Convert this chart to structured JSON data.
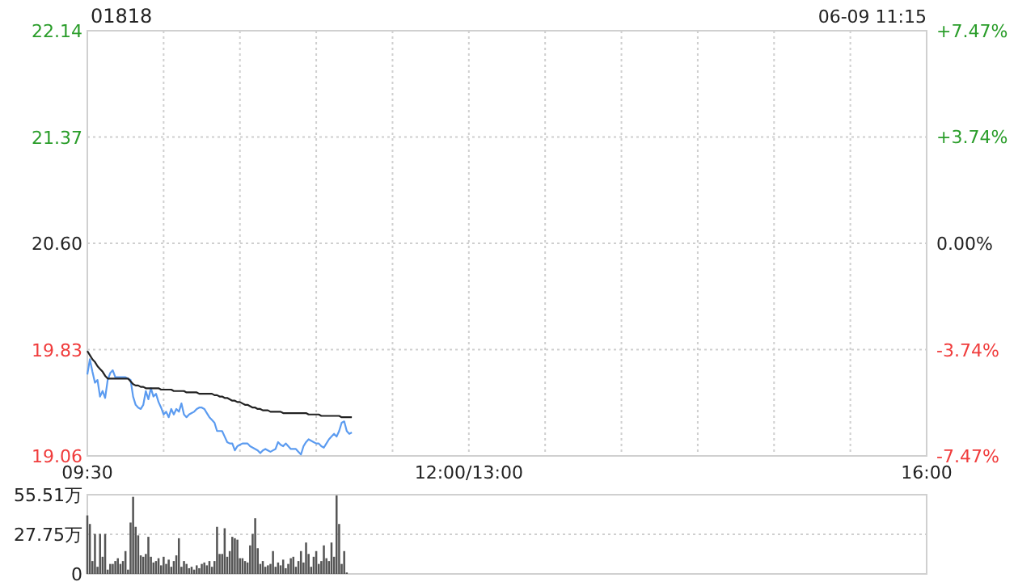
{
  "chart_data": [
    {
      "type": "line",
      "title": "01818",
      "annotations": [
        "06-09 11:15"
      ],
      "categories": [
        "09:30",
        null,
        null,
        null,
        null,
        null,
        null,
        null,
        null,
        null,
        null,
        null,
        null,
        null,
        null,
        null,
        null,
        null,
        null,
        null,
        null,
        null,
        null,
        null,
        null,
        null,
        null,
        null,
        null,
        null,
        null,
        null,
        null,
        null,
        null,
        null,
        null,
        null,
        null,
        null,
        null,
        null,
        null,
        null,
        null,
        null,
        null,
        null,
        null,
        null,
        null,
        null,
        null,
        null,
        null,
        null,
        null,
        null,
        null,
        null,
        null,
        null,
        null,
        null,
        null,
        null,
        null,
        null,
        null,
        null,
        null,
        null,
        null,
        null,
        null,
        null,
        null,
        null,
        null,
        null,
        null,
        null,
        null,
        null,
        null,
        null,
        null,
        null,
        null,
        null,
        null,
        null,
        null,
        null,
        null,
        null,
        null,
        null,
        null,
        null,
        null,
        null,
        null,
        null,
        null,
        null,
        null,
        null,
        null,
        null,
        null,
        null,
        null,
        null,
        null,
        null,
        null,
        null,
        null,
        null,
        null,
        null,
        null,
        null,
        null,
        null,
        null,
        null,
        null,
        null,
        null,
        null,
        null,
        null,
        null,
        null,
        null,
        null,
        null,
        null,
        null,
        null,
        null,
        null,
        null,
        null,
        null,
        null,
        null,
        null,
        "12:00/13:00",
        null,
        null,
        null,
        null,
        null,
        null,
        null,
        null,
        null,
        null,
        null,
        null,
        null,
        null,
        null,
        null,
        null,
        null,
        null,
        null,
        null,
        null,
        null,
        null,
        null,
        null,
        null,
        null,
        null,
        null,
        null,
        null,
        null,
        null,
        null,
        null,
        null,
        null,
        null,
        null,
        null,
        null,
        null,
        null,
        null,
        null,
        null,
        null,
        null,
        null,
        null,
        null,
        null,
        null,
        null,
        null,
        null,
        null,
        null,
        null,
        null,
        null,
        null,
        null,
        null,
        null,
        null,
        null,
        null,
        null,
        null,
        null,
        null,
        null,
        null,
        null,
        null,
        null,
        null,
        null,
        null,
        null,
        null,
        null,
        null,
        null,
        null,
        null,
        null,
        null,
        null,
        null,
        null,
        null,
        null,
        null,
        null,
        null,
        null,
        null,
        null,
        null,
        null,
        null,
        null,
        null,
        null,
        null,
        null,
        null,
        null,
        null,
        null,
        null,
        null,
        null,
        null,
        null,
        null,
        null,
        null,
        null,
        null,
        null,
        null,
        null,
        null,
        null,
        null,
        null,
        null,
        null,
        null,
        null,
        null,
        null,
        null,
        null,
        null,
        null,
        null,
        null,
        null,
        null,
        null,
        null,
        null,
        null,
        null,
        null,
        null,
        null,
        null,
        null,
        null,
        null,
        null,
        null,
        null,
        null,
        null,
        null,
        null,
        null,
        null,
        null,
        null,
        null,
        null,
        null,
        null,
        null,
        null,
        null,
        null,
        null,
        null,
        null,
        null,
        "16:00"
      ],
      "ylim": [
        19.06,
        22.14
      ],
      "yticks": [
        {
          "value": 19.06,
          "label": "19.06"
        },
        {
          "value": 19.83,
          "label": "19.83"
        },
        {
          "value": 20.6,
          "label": "20.60"
        },
        {
          "value": 21.37,
          "label": "21.37"
        },
        {
          "value": 22.14,
          "label": "22.14"
        }
      ],
      "y2lim": [
        -7.47,
        7.47
      ],
      "y2ticks": [
        {
          "value": -7.47,
          "label": "-7.47%"
        },
        {
          "value": -3.74,
          "label": "-3.74%"
        },
        {
          "value": 0,
          "label": "0.00%"
        },
        {
          "value": 3.74,
          "label": "+3.74%"
        },
        {
          "value": 7.47,
          "label": "+7.47%"
        }
      ],
      "grid": true,
      "series": [
        {
          "color": "#5b9bf0",
          "values": [
            19.65,
            19.76,
            19.67,
            19.59,
            19.61,
            19.49,
            19.53,
            19.48,
            19.61,
            19.66,
            19.68,
            19.63,
            19.63,
            19.63,
            19.63,
            19.63,
            19.62,
            19.61,
            19.49,
            19.43,
            19.41,
            19.4,
            19.43,
            19.53,
            19.47,
            19.55,
            19.49,
            19.51,
            19.45,
            19.41,
            19.36,
            19.38,
            19.34,
            19.4,
            19.36,
            19.4,
            19.38,
            19.44,
            19.36,
            19.34,
            19.36,
            19.37,
            19.38,
            19.4,
            19.41,
            19.41,
            19.4,
            19.37,
            19.34,
            19.32,
            19.3,
            19.24,
            19.24,
            19.24,
            19.2,
            19.16,
            19.15,
            19.15,
            19.1,
            19.13,
            19.14,
            19.15,
            19.15,
            19.15,
            19.13,
            19.12,
            19.11,
            19.1,
            19.08,
            19.1,
            19.11,
            19.1,
            19.09,
            19.1,
            19.11,
            19.16,
            19.14,
            19.13,
            19.15,
            19.13,
            19.11,
            19.11,
            19.11,
            19.09,
            19.07,
            19.13,
            19.16,
            19.18,
            19.17,
            19.16,
            19.15,
            19.15,
            19.13,
            19.12,
            19.15,
            19.18,
            19.2,
            19.22,
            19.2,
            19.24,
            19.3,
            19.31,
            19.24,
            19.22,
            19.23,
            null,
            null,
            null,
            null,
            null,
            null,
            null,
            null,
            null,
            null,
            null,
            null,
            null,
            null,
            null,
            null,
            null,
            null,
            null,
            null,
            null,
            null,
            null,
            null,
            null,
            null,
            null,
            null,
            null,
            null,
            null,
            null,
            null,
            null,
            null,
            null,
            null,
            null,
            null,
            null,
            null,
            null,
            null,
            null,
            null,
            null,
            null,
            null,
            null,
            null,
            null,
            null,
            null,
            null,
            null,
            null,
            null,
            null,
            null,
            null,
            null,
            null,
            null,
            null,
            null,
            null,
            null,
            null,
            null,
            null,
            null,
            null,
            null,
            null,
            null,
            null,
            null,
            null,
            null,
            null,
            null,
            null,
            null,
            null,
            null,
            null,
            null,
            null,
            null,
            null,
            null,
            null,
            null,
            null,
            null,
            null,
            null,
            null,
            null,
            null,
            null,
            null,
            null,
            null,
            null,
            null,
            null,
            null,
            null,
            null,
            null,
            null,
            null,
            null,
            null,
            null,
            null,
            null,
            null,
            null,
            null,
            null,
            null,
            null,
            null,
            null,
            null,
            null,
            null,
            null,
            null,
            null,
            null,
            null,
            null,
            null,
            null,
            null,
            null,
            null,
            null,
            null,
            null,
            null,
            null,
            null,
            null,
            null,
            null,
            null,
            null,
            null,
            null,
            null,
            null,
            null,
            null,
            null,
            null,
            null,
            null,
            null,
            null,
            null,
            null,
            null,
            null,
            null,
            null,
            null,
            null,
            null,
            null,
            null,
            null,
            null,
            null,
            null,
            null,
            null,
            null,
            null,
            null,
            null,
            null,
            null,
            null,
            null,
            null,
            null,
            null,
            null,
            null,
            null,
            null,
            null,
            null,
            null,
            null,
            null,
            null,
            null,
            null,
            null,
            null,
            null,
            null,
            null,
            null,
            null,
            null,
            null,
            null,
            null,
            null,
            null,
            null,
            null,
            null,
            null,
            null,
            null,
            null,
            null,
            null,
            null
          ]
        },
        {
          "color": "#222222",
          "values": [
            19.82,
            19.79,
            19.76,
            19.74,
            19.71,
            19.69,
            19.67,
            19.64,
            19.62,
            19.62,
            19.62,
            19.62,
            19.62,
            19.62,
            19.62,
            19.62,
            19.62,
            19.6,
            19.58,
            19.57,
            19.57,
            19.56,
            19.56,
            19.55,
            19.55,
            19.55,
            19.55,
            19.55,
            19.55,
            19.54,
            19.54,
            19.54,
            19.54,
            19.54,
            19.53,
            19.53,
            19.53,
            19.53,
            19.53,
            19.52,
            19.52,
            19.52,
            19.52,
            19.52,
            19.51,
            19.51,
            19.51,
            19.51,
            19.51,
            19.51,
            19.5,
            19.5,
            19.49,
            19.49,
            19.48,
            19.48,
            19.47,
            19.46,
            19.46,
            19.45,
            19.45,
            19.44,
            19.43,
            19.43,
            19.42,
            19.41,
            19.41,
            19.4,
            19.4,
            19.39,
            19.39,
            19.39,
            19.38,
            19.38,
            19.38,
            19.38,
            19.38,
            19.37,
            19.37,
            19.37,
            19.37,
            19.37,
            19.37,
            19.37,
            19.37,
            19.37,
            19.37,
            19.36,
            19.36,
            19.36,
            19.36,
            19.36,
            19.35,
            19.35,
            19.35,
            19.35,
            19.35,
            19.35,
            19.35,
            19.35,
            19.34,
            19.34,
            19.34,
            19.34,
            19.34,
            null,
            null,
            null,
            null,
            null,
            null,
            null,
            null,
            null,
            null,
            null,
            null,
            null,
            null,
            null,
            null,
            null,
            null,
            null,
            null,
            null,
            null,
            null,
            null,
            null,
            null,
            null,
            null,
            null,
            null,
            null,
            null,
            null,
            null,
            null,
            null,
            null,
            null,
            null,
            null,
            null,
            null,
            null,
            null,
            null,
            null,
            null,
            null,
            null,
            null,
            null,
            null,
            null,
            null,
            null,
            null,
            null,
            null,
            null,
            null,
            null,
            null,
            null,
            null,
            null,
            null,
            null,
            null,
            null,
            null,
            null,
            null,
            null,
            null,
            null,
            null,
            null,
            null,
            null,
            null,
            null,
            null,
            null,
            null,
            null,
            null,
            null,
            null,
            null,
            null,
            null,
            null,
            null,
            null,
            null,
            null,
            null,
            null,
            null,
            null,
            null,
            null,
            null,
            null,
            null,
            null,
            null,
            null,
            null,
            null,
            null,
            null,
            null,
            null,
            null,
            null,
            null,
            null,
            null,
            null,
            null,
            null,
            null,
            null,
            null,
            null,
            null,
            null,
            null,
            null,
            null,
            null,
            null,
            null,
            null,
            null,
            null,
            null,
            null,
            null,
            null,
            null,
            null,
            null,
            null,
            null,
            null,
            null,
            null,
            null,
            null,
            null,
            null,
            null,
            null,
            null,
            null,
            null,
            null,
            null,
            null,
            null,
            null,
            null,
            null,
            null,
            null,
            null,
            null,
            null,
            null,
            null,
            null,
            null,
            null,
            null,
            null,
            null,
            null,
            null,
            null,
            null,
            null,
            null,
            null,
            null,
            null,
            null,
            null,
            null,
            null,
            null,
            null,
            null,
            null,
            null,
            null,
            null,
            null,
            null,
            null,
            null,
            null,
            null,
            null,
            null,
            null,
            null,
            null,
            null,
            null,
            null,
            null,
            null,
            null,
            null,
            null,
            null,
            null,
            null,
            null,
            null,
            null,
            null,
            null,
            null
          ]
        }
      ]
    },
    {
      "type": "bar",
      "color": "#555555",
      "tick_labels": "y",
      "grid": "y",
      "categories": [
        null,
        null,
        null,
        null,
        null,
        null,
        null,
        null,
        null,
        null,
        null,
        null,
        null,
        null,
        null,
        null,
        null,
        null,
        null,
        null,
        null,
        null,
        null,
        null,
        null,
        null,
        null,
        null,
        null,
        null,
        null,
        null,
        null,
        null,
        null,
        null,
        null,
        null,
        null,
        null,
        null,
        null,
        null,
        null,
        null,
        null,
        null,
        null,
        null,
        null,
        null,
        null,
        null,
        null,
        null,
        null,
        null,
        null,
        null,
        null,
        null,
        null,
        null,
        null,
        null,
        null,
        null,
        null,
        null,
        null,
        null,
        null,
        null,
        null,
        null,
        null,
        null,
        null,
        null,
        null,
        null,
        null,
        null,
        null,
        null,
        null,
        null,
        null,
        null,
        null,
        null,
        null,
        null,
        null,
        null,
        null,
        null,
        null,
        null,
        null,
        null,
        null,
        null,
        null,
        null,
        null,
        null,
        null,
        null,
        null,
        null,
        null,
        null,
        null,
        null,
        null,
        null,
        null,
        null,
        null,
        null,
        null,
        null,
        null,
        null,
        null,
        null,
        null,
        null,
        null,
        null,
        null,
        null,
        null,
        null,
        null,
        null,
        null,
        null,
        null,
        null,
        null,
        null,
        null,
        null,
        null,
        null,
        null,
        null,
        null,
        null,
        null,
        null,
        null,
        null,
        null,
        null,
        null,
        null,
        null,
        null,
        null,
        null,
        null,
        null,
        null,
        null,
        null,
        null,
        null,
        null,
        null,
        null,
        null,
        null,
        null,
        null,
        null,
        null,
        null,
        null,
        null,
        null,
        null,
        null,
        null,
        null,
        null,
        null,
        null,
        null,
        null,
        null,
        null,
        null,
        null,
        null,
        null,
        null,
        null,
        null,
        null,
        null,
        null,
        null,
        null,
        null,
        null,
        null,
        null,
        null,
        null,
        null,
        null,
        null,
        null,
        null,
        null,
        null,
        null,
        null,
        null,
        null,
        null,
        null,
        null,
        null,
        null,
        null,
        null,
        null,
        null,
        null,
        null,
        null,
        null,
        null,
        null,
        null,
        null,
        null,
        null,
        null,
        null,
        null,
        null,
        null,
        null,
        null,
        null,
        null,
        null,
        null,
        null,
        null,
        null,
        null,
        null,
        null,
        null,
        null,
        null,
        null,
        null,
        null,
        null,
        null,
        null,
        null,
        null,
        null,
        null,
        null,
        null,
        null,
        null,
        null,
        null,
        null,
        null,
        null,
        null,
        null,
        null,
        null,
        null,
        null,
        null,
        null,
        null,
        null,
        null,
        null,
        null,
        null,
        null,
        null,
        null,
        null,
        null,
        null,
        null,
        null,
        null,
        null,
        null,
        null,
        null,
        null,
        null,
        null,
        null,
        null,
        null,
        null,
        null,
        null,
        null,
        null,
        null,
        null,
        null,
        null,
        null,
        null,
        null,
        null,
        null,
        null,
        null,
        null
      ],
      "ylim": [
        0,
        55.51
      ],
      "yticks": [
        {
          "value": 0,
          "label": "0"
        },
        {
          "value": 27.75,
          "label": "27.75万"
        },
        {
          "value": 55.51,
          "label": "55.51万"
        }
      ],
      "values": [
        41,
        35,
        9,
        28,
        5,
        28,
        12,
        28,
        3,
        7,
        7,
        9,
        11,
        7,
        9,
        16,
        3,
        36,
        54,
        33,
        27,
        13,
        12,
        14,
        26,
        12,
        8,
        9,
        11,
        6,
        12,
        7,
        10,
        5,
        9,
        13,
        25,
        5,
        9,
        7,
        4,
        5,
        3,
        6,
        4,
        7,
        8,
        6,
        9,
        5,
        9,
        33,
        14,
        14,
        32,
        12,
        16,
        26,
        25,
        24,
        11,
        11,
        9,
        8,
        20,
        28,
        39,
        18,
        7,
        9,
        5,
        6,
        7,
        16,
        5,
        8,
        6,
        10,
        4,
        7,
        11,
        12,
        5,
        9,
        16,
        8,
        22,
        14,
        5,
        12,
        16,
        7,
        9,
        20,
        11,
        9,
        22,
        12,
        55,
        35,
        7,
        16,
        1,
        null,
        null,
        null,
        null,
        null,
        null,
        null,
        null,
        null,
        null,
        null,
        null,
        null,
        null,
        null,
        null,
        null,
        null,
        null,
        null,
        null,
        null,
        null,
        null,
        null,
        null,
        null,
        null,
        null,
        null,
        null,
        null,
        null,
        null,
        null,
        null,
        null,
        null,
        null,
        null,
        null,
        null,
        null,
        null,
        null,
        null,
        null,
        null,
        null,
        null,
        null,
        null,
        null,
        null,
        null,
        null,
        null,
        null,
        null,
        null,
        null,
        null,
        null,
        null,
        null,
        null,
        null,
        null,
        null,
        null,
        null,
        null,
        null,
        null,
        null,
        null,
        null,
        null,
        null,
        null,
        null,
        null,
        null,
        null,
        null,
        null,
        null,
        null,
        null,
        null,
        null,
        null,
        null,
        null,
        null,
        null,
        null,
        null,
        null,
        null,
        null,
        null,
        null,
        null,
        null,
        null,
        null,
        null,
        null,
        null,
        null,
        null,
        null,
        null,
        null,
        null,
        null,
        null,
        null,
        null,
        null,
        null,
        null,
        null,
        null,
        null,
        null,
        null,
        null,
        null,
        null,
        null,
        null,
        null,
        null,
        null,
        null,
        null,
        null,
        null,
        null,
        null,
        null,
        null,
        null,
        null,
        null,
        null,
        null,
        null,
        null,
        null,
        null,
        null,
        null,
        null,
        null,
        null,
        null,
        null,
        null,
        null,
        null,
        null,
        null,
        null,
        null,
        null,
        null,
        null,
        null,
        null,
        null,
        null,
        null,
        null,
        null,
        null,
        null,
        null,
        null,
        null,
        null,
        null,
        null,
        null,
        null,
        null,
        null,
        null,
        null,
        null,
        null,
        null,
        null,
        null,
        null,
        null,
        null,
        null,
        null,
        null,
        null,
        null,
        null,
        null,
        null,
        null,
        null,
        null,
        null,
        null,
        null,
        null,
        null,
        null,
        null,
        null,
        null,
        null,
        null,
        null,
        null,
        null,
        null,
        null,
        null,
        null
      ]
    }
  ]
}
